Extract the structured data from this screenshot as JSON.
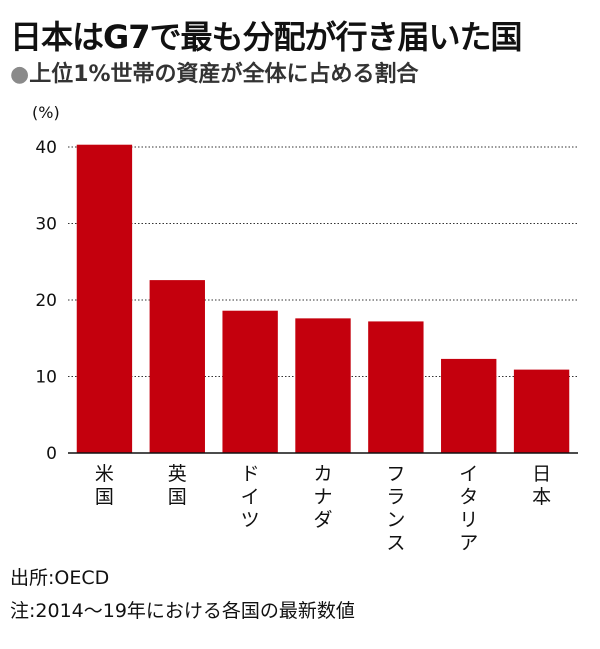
{
  "chart_data": {
    "type": "bar",
    "title": "日本はG7で最も分配が行き届いた国",
    "subtitle": "上位1%世帯の資産が全体に占める割合",
    "subtitle_bullet": "●",
    "unit_label": "(%)",
    "categories": [
      "米国",
      "英国",
      "ドイツ",
      "カナダ",
      "フランス",
      "イタリア",
      "日本"
    ],
    "values": [
      40.3,
      22.6,
      18.6,
      17.6,
      17.2,
      12.3,
      10.9
    ],
    "ylim": [
      0,
      40
    ],
    "yticks": [
      0,
      10,
      20,
      30,
      40
    ],
    "grid": true,
    "bar_color": "#c4000d"
  },
  "footer": {
    "source": "出所:OECD",
    "note": "注:2014〜19年における各国の最新数値"
  }
}
